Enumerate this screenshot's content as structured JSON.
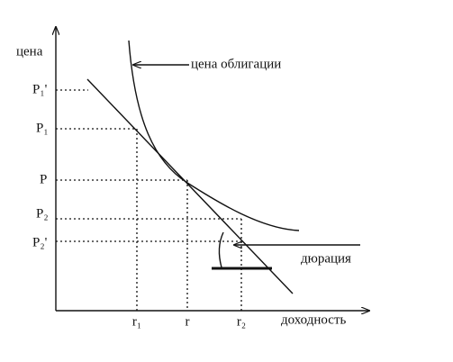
{
  "diagram": {
    "y_axis_label": "цена",
    "x_axis_label": "доходность",
    "price_labels": [
      "P₁'",
      "P₁",
      "P",
      "P₂",
      "P₂'"
    ],
    "yield_labels": [
      "r₁",
      "r",
      "r₂"
    ],
    "curve_label": "цена облигации",
    "tangent_label": "дюрация"
  }
}
